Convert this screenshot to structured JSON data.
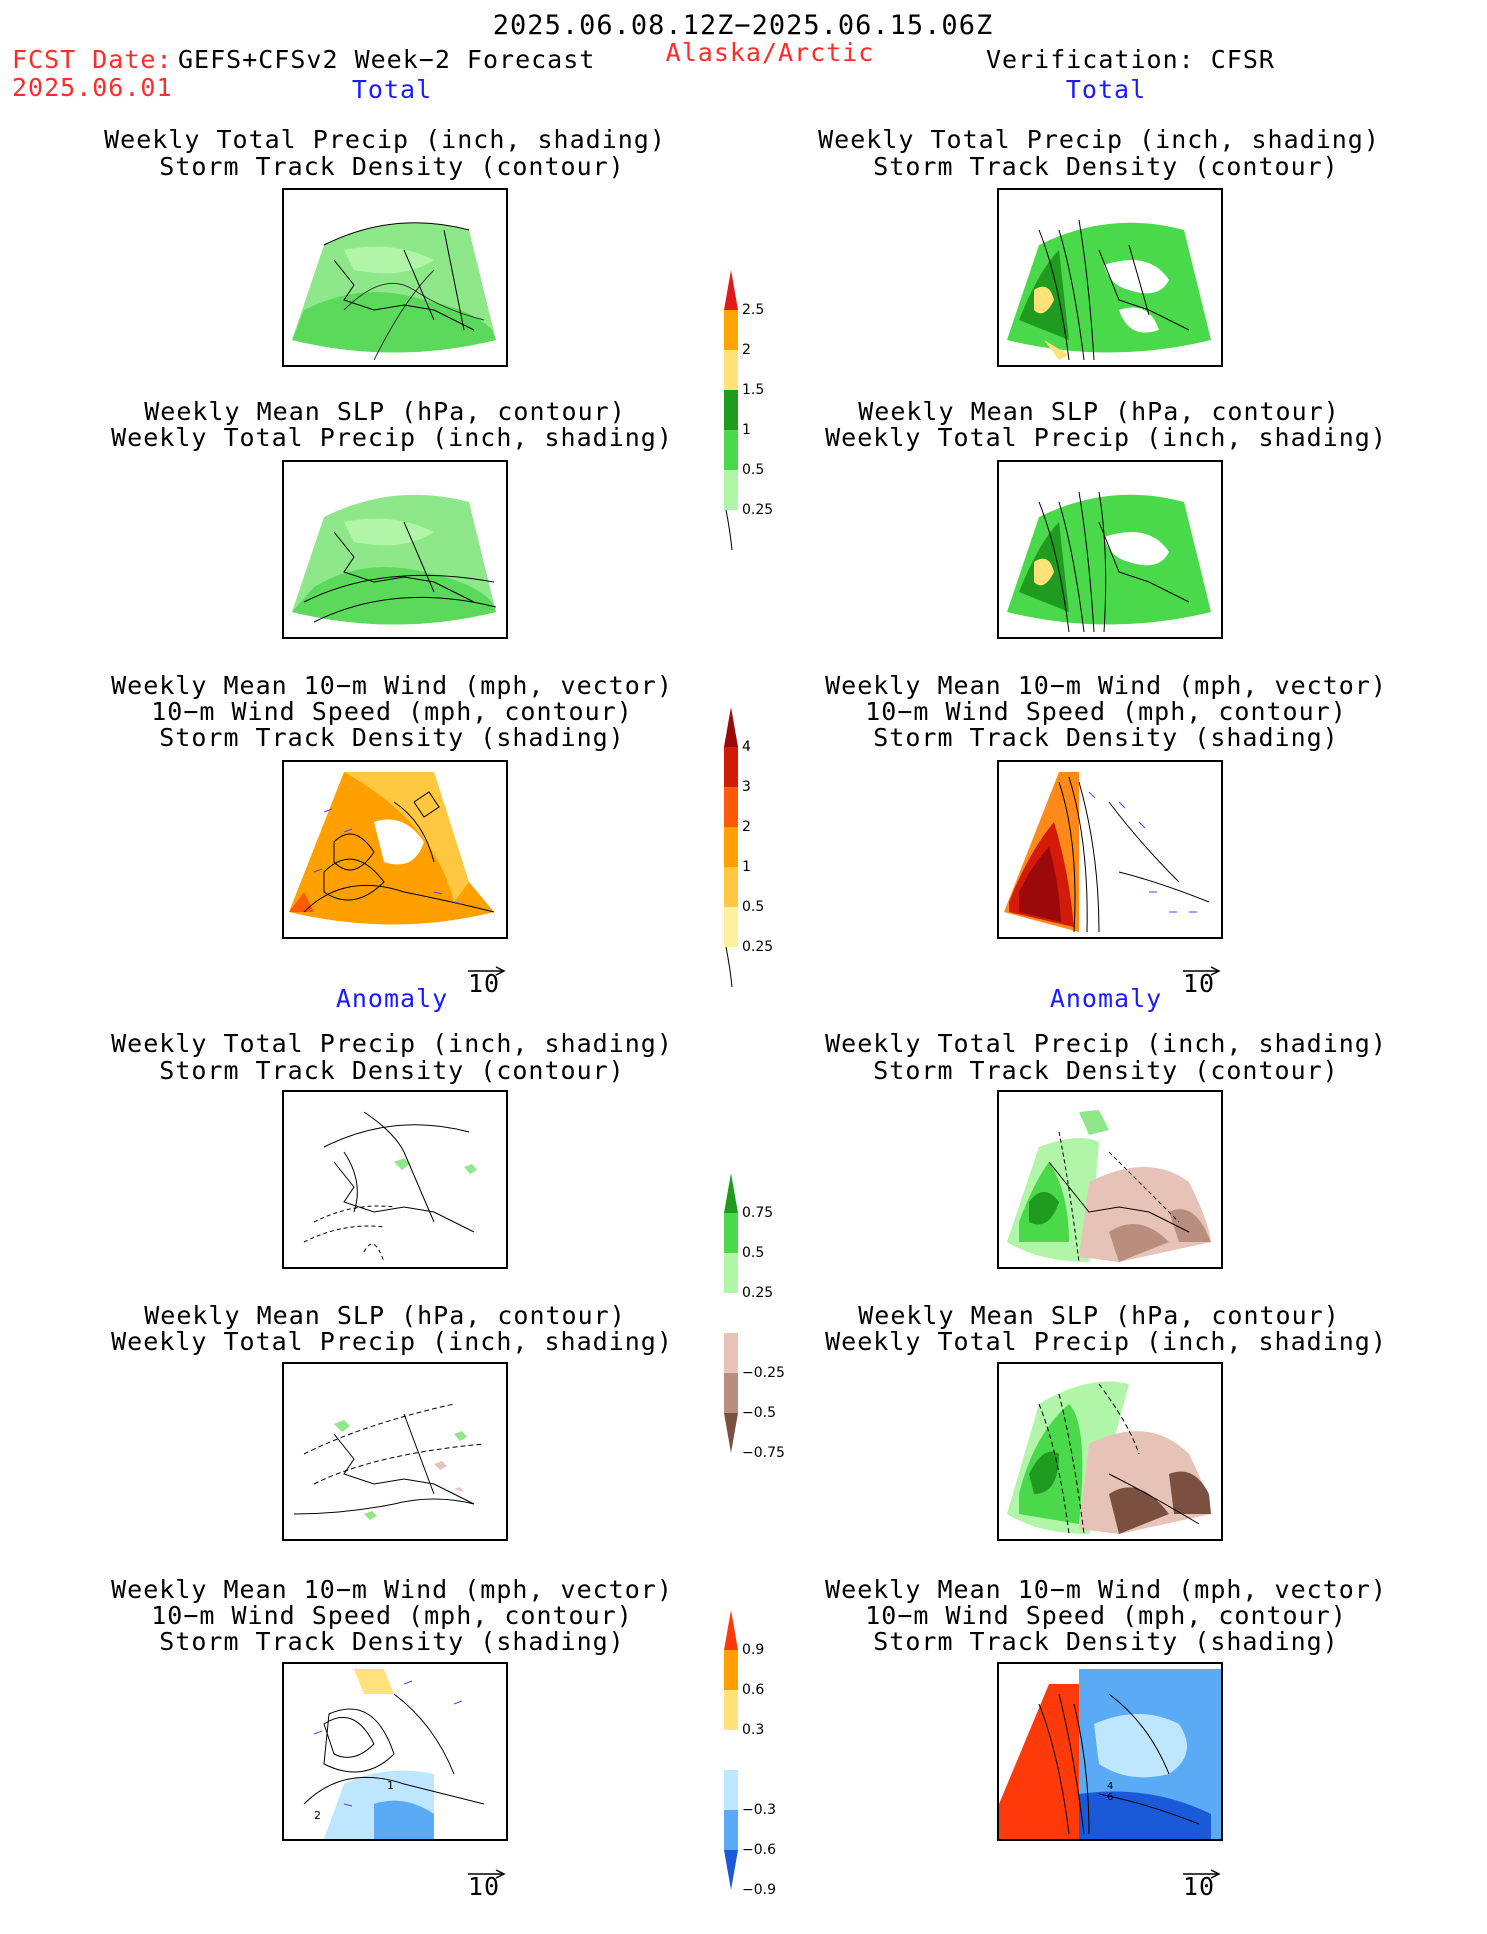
{
  "header": {
    "period": "2025.06.08.12Z−2025.06.15.06Z",
    "fcst_date_label": "FCST Date:",
    "fcst_model": "GEFS+CFSv2 Week−2 Forecast",
    "fcst_date": "2025.06.01",
    "region": "Alaska/Arctic",
    "verification": "Verification: CFSR"
  },
  "sections": {
    "total": "Total",
    "anomaly": "Anomaly"
  },
  "titles": {
    "precip_storm": [
      "Weekly Total Precip (inch, shading)",
      "Storm Track Density (contour)"
    ],
    "slp_precip": [
      "Weekly Mean SLP (hPa, contour)",
      "Weekly Total Precip (inch, shading)"
    ],
    "wind_storm": [
      "Weekly Mean 10−m Wind (mph, vector)",
      "10−m Wind Speed (mph, contour)",
      "Storm Track Density (shading)"
    ]
  },
  "vector_ref": "10",
  "colorbars": [
    {
      "name": "precip-total",
      "labels": [
        "2.5",
        "2",
        "1.5",
        "1",
        "0.5",
        "0.25"
      ],
      "colors": [
        "#e11b1b",
        "#ffa500",
        "#ffe27a",
        "#1f9b1f",
        "#4ad94a",
        "#b0f5a8"
      ]
    },
    {
      "name": "storm-total",
      "labels": [
        "4",
        "3",
        "2",
        "1",
        "0.5",
        "0.25"
      ],
      "colors": [
        "#9b0a0a",
        "#d41a0a",
        "#ff5a0a",
        "#ffa000",
        "#ffc840",
        "#fff0a0"
      ]
    },
    {
      "name": "precip-anomaly",
      "labels": [
        "0.75",
        "0.5",
        "0.25",
        "−0.25",
        "−0.5",
        "−0.75"
      ],
      "colors": [
        "#1f9b1f",
        "#4ad94a",
        "#b0f5a8",
        "#ffffff",
        "#e6c3b6",
        "#b88f7f",
        "#7a5040"
      ]
    },
    {
      "name": "storm-anomaly",
      "labels": [
        "0.9",
        "0.6",
        "0.3",
        "−0.3",
        "−0.6",
        "−0.9"
      ],
      "colors": [
        "#ff3a0a",
        "#ffa000",
        "#ffe27a",
        "#ffffff",
        "#bfe6ff",
        "#5aaaf5",
        "#1a5ad9"
      ]
    }
  ],
  "contour_labels": {
    "left_wind_anomaly": [
      "2",
      "1"
    ],
    "right_wind_anomaly": [
      "4",
      "6"
    ]
  }
}
